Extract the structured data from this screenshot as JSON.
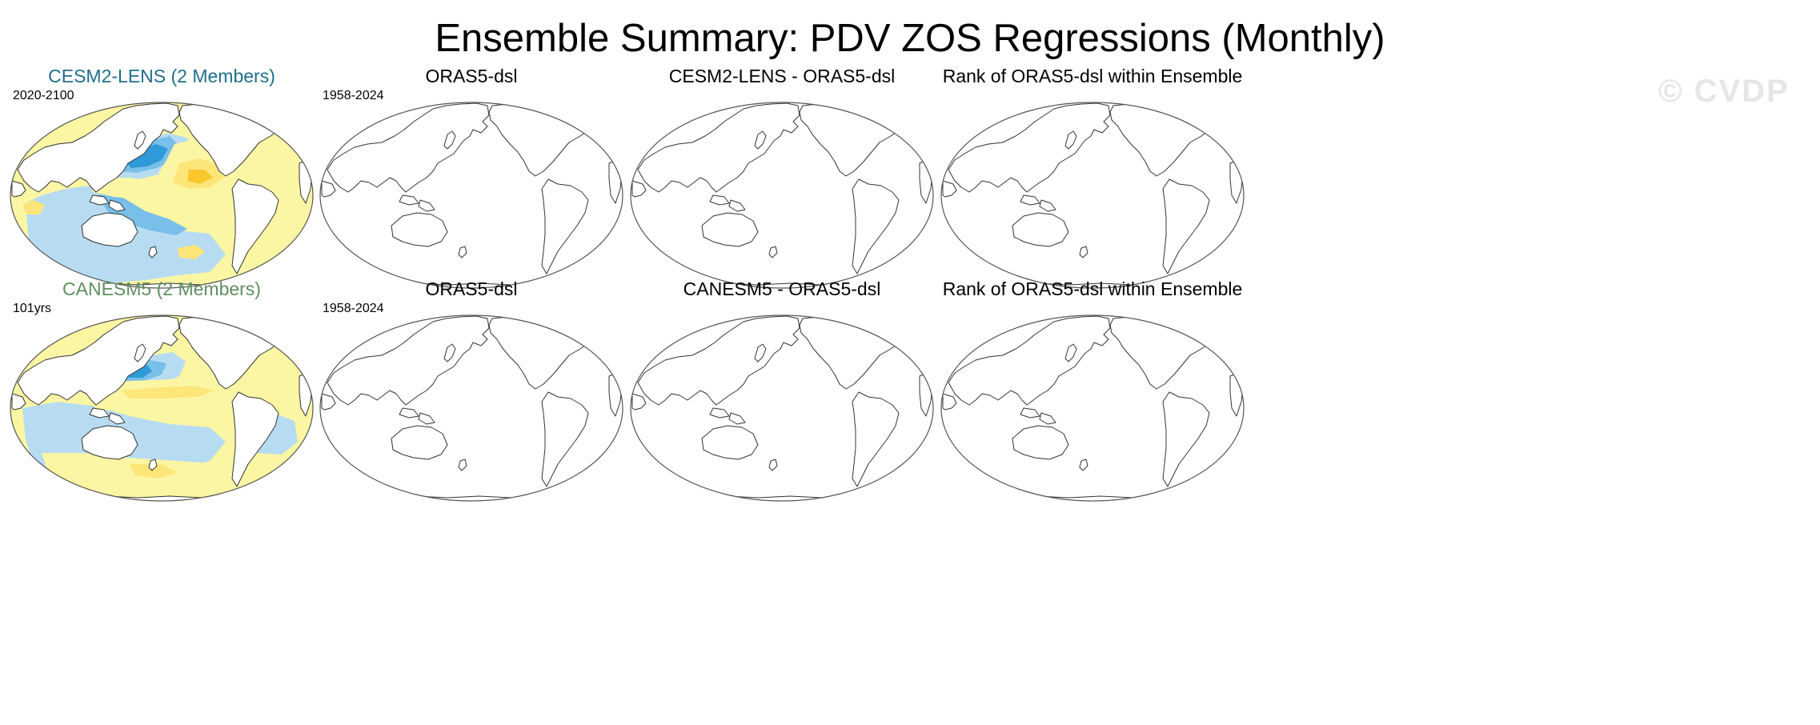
{
  "figure": {
    "title": "Ensemble Summary: PDV ZOS Regressions (Monthly)",
    "watermark": "© CVDP"
  },
  "colors": {
    "positive_light": "#fbf6a4",
    "positive_mid": "#fde679",
    "positive_strong": "#f8c82c",
    "negative_light": "#b7dcf2",
    "negative_mid": "#78bfe9",
    "negative_strong": "#2f9ad8",
    "land": "#ffffff",
    "outline": "#333333",
    "cesm_title": "#1e6e8c",
    "canesm_title": "#5f8f5f"
  },
  "rows": [
    {
      "panels": [
        {
          "title": "CESM2-LENS (2 Members)",
          "period": "2020-2100",
          "filled": true,
          "title_color_key": "cesm_title"
        },
        {
          "title": "ORAS5-dsl",
          "period": "1958-2024",
          "filled": false
        },
        {
          "title": "CESM2-LENS - ORAS5-dsl",
          "period": "",
          "filled": false
        },
        {
          "title": "Rank of ORAS5-dsl within Ensemble",
          "period": "",
          "filled": false
        }
      ]
    },
    {
      "panels": [
        {
          "title": "CANESM5 (2 Members)",
          "period": "101yrs",
          "filled": true,
          "title_color_key": "canesm_title"
        },
        {
          "title": "ORAS5-dsl",
          "period": "1958-2024",
          "filled": false
        },
        {
          "title": "CANESM5 - ORAS5-dsl",
          "period": "",
          "filled": false
        },
        {
          "title": "Rank of ORAS5-dsl within Ensemble",
          "period": "",
          "filled": false
        }
      ]
    }
  ]
}
